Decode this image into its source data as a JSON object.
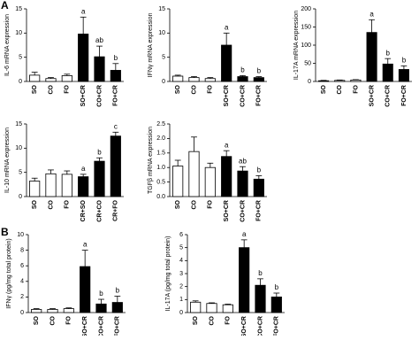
{
  "panel_labels": [
    "A",
    "B"
  ],
  "chart_data": [
    {
      "type": "bar",
      "y_label": "IL-6 mRNA expression",
      "categories": [
        "SO",
        "CO",
        "FO",
        "SO+CR",
        "CO+CR",
        "FO+CR"
      ],
      "values": [
        1.3,
        0.6,
        1.2,
        9.8,
        5.1,
        2.3
      ],
      "errors": [
        0.6,
        0.2,
        0.3,
        3.5,
        2.2,
        1.4
      ],
      "annotations": [
        null,
        null,
        null,
        "a",
        "ab",
        "b"
      ],
      "bar_colors": [
        "#ffffff",
        "#ffffff",
        "#ffffff",
        "#000000",
        "#000000",
        "#000000"
      ],
      "ylim": [
        0,
        15
      ],
      "yticks": [
        0,
        5,
        10,
        15
      ]
    },
    {
      "type": "bar",
      "y_label": "IFNγ mRNA expression",
      "categories": [
        "SO",
        "CO",
        "FO",
        "SO+CR",
        "CO+CR",
        "FO+CR"
      ],
      "values": [
        1.1,
        0.8,
        0.6,
        7.5,
        1.0,
        0.8
      ],
      "errors": [
        0.2,
        0.2,
        0.2,
        2.5,
        0.2,
        0.2
      ],
      "annotations": [
        null,
        null,
        null,
        "a",
        "b",
        "b"
      ],
      "bar_colors": [
        "#ffffff",
        "#ffffff",
        "#ffffff",
        "#000000",
        "#000000",
        "#000000"
      ],
      "ylim": [
        0,
        15
      ],
      "yticks": [
        0,
        5,
        10,
        15
      ]
    },
    {
      "type": "bar",
      "y_label": "IL-17A mRNA expression",
      "categories": [
        "SO",
        "CO",
        "FO",
        "SO+CR",
        "CO+CR",
        "FO+CR"
      ],
      "values": [
        2,
        3,
        4,
        135,
        48,
        33
      ],
      "errors": [
        1,
        1,
        1,
        35,
        15,
        10
      ],
      "annotations": [
        null,
        null,
        null,
        "a",
        "b",
        "b"
      ],
      "bar_colors": [
        "#ffffff",
        "#ffffff",
        "#ffffff",
        "#000000",
        "#000000",
        "#000000"
      ],
      "ylim": [
        0,
        200
      ],
      "yticks": [
        0,
        50,
        100,
        150,
        200
      ]
    },
    {
      "type": "bar",
      "y_label": "IL-10 mRNA expression",
      "categories": [
        "SO",
        "CO",
        "FO",
        "CR+SO",
        "CR+CO",
        "CR+FO"
      ],
      "values": [
        3.2,
        4.7,
        4.6,
        4.1,
        7.3,
        12.5
      ],
      "errors": [
        0.6,
        0.8,
        0.7,
        0.5,
        0.7,
        0.8
      ],
      "annotations": [
        null,
        null,
        null,
        "a",
        "b",
        "c"
      ],
      "bar_colors": [
        "#ffffff",
        "#ffffff",
        "#ffffff",
        "#000000",
        "#000000",
        "#000000"
      ],
      "ylim": [
        0,
        15
      ],
      "yticks": [
        0,
        5,
        10,
        15
      ]
    },
    {
      "type": "bar",
      "y_label": "TGFβ mRNA expression",
      "categories": [
        "SO",
        "CO",
        "FO",
        "SO+CR",
        "CO+CR",
        "FO+CR"
      ],
      "values": [
        1.05,
        1.55,
        1.0,
        1.38,
        0.88,
        0.6
      ],
      "errors": [
        0.2,
        0.5,
        0.15,
        0.2,
        0.15,
        0.12
      ],
      "annotations": [
        null,
        null,
        null,
        "a",
        "ab",
        "b"
      ],
      "bar_colors": [
        "#ffffff",
        "#ffffff",
        "#ffffff",
        "#000000",
        "#000000",
        "#000000"
      ],
      "ylim": [
        0,
        2.5
      ],
      "yticks": [
        {
          "value": 0,
          "label": "0.0"
        },
        {
          "value": 0.5,
          "label": "0.5"
        },
        {
          "value": 1,
          "label": "1.0"
        },
        {
          "value": 1.5,
          "label": "1.5"
        },
        {
          "value": 2,
          "label": "2.0"
        },
        {
          "value": 2.5,
          "label": "2.5"
        }
      ]
    },
    {
      "type": "bar",
      "y_label": "IFNγ (pg/mg total protein)",
      "categories": [
        "SO",
        "CO",
        "FO",
        "SO+CR",
        "CO+CR",
        "FO+CR"
      ],
      "values": [
        0.4,
        0.4,
        0.5,
        5.9,
        1.1,
        1.3
      ],
      "errors": [
        0.1,
        0.1,
        0.1,
        2.1,
        0.6,
        0.8
      ],
      "annotations": [
        null,
        null,
        null,
        "a",
        "b",
        "b"
      ],
      "bar_colors": [
        "#ffffff",
        "#ffffff",
        "#ffffff",
        "#000000",
        "#000000",
        "#000000"
      ],
      "ylim": [
        0,
        10
      ],
      "yticks": [
        0,
        2,
        4,
        6,
        8,
        10
      ]
    },
    {
      "type": "bar",
      "y_label": "IL-17A (pg/mg total protein)",
      "categories": [
        "SO",
        "CO",
        "FO",
        "SO+CR",
        "CO+CR",
        "FO+CR"
      ],
      "values": [
        0.8,
        0.7,
        0.6,
        5.0,
        2.1,
        1.2
      ],
      "errors": [
        0.1,
        0.05,
        0.05,
        0.6,
        0.5,
        0.3
      ],
      "annotations": [
        null,
        null,
        null,
        "a",
        "b",
        "b"
      ],
      "bar_colors": [
        "#ffffff",
        "#ffffff",
        "#ffffff",
        "#000000",
        "#000000",
        "#000000"
      ],
      "ylim": [
        0,
        6
      ],
      "yticks": [
        0,
        1,
        2,
        3,
        4,
        5,
        6
      ]
    }
  ]
}
